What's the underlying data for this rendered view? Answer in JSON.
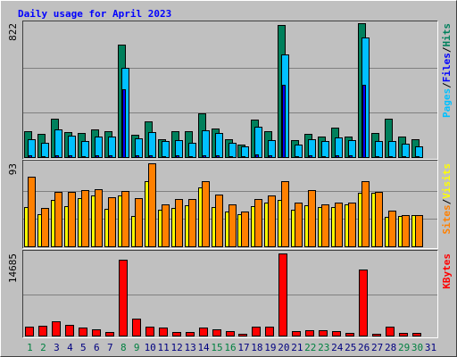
{
  "title": "Daily usage for April 2023",
  "legend_separator": "/",
  "chart_data": [
    {
      "type": "bar",
      "ylim": [
        0,
        822
      ],
      "yticks": [
        822
      ],
      "grid_lines": 3,
      "series": [
        {
          "name": "Pages",
          "color": "#00c0ff",
          "values": [
            110,
            88,
            170,
            132,
            99,
            126,
            126,
            548,
            115,
            153,
            99,
            104,
            88,
            164,
            148,
            88,
            66,
            186,
            104,
            630,
            77,
            110,
            99,
            121,
            104,
            734,
            99,
            99,
            82,
            66,
            0
          ]
        },
        {
          "name": "Files",
          "color": "#0000ff",
          "values": [
            10,
            8,
            12,
            10,
            8,
            10,
            10,
            416,
            9,
            12,
            8,
            9,
            8,
            12,
            11,
            8,
            6,
            14,
            9,
            444,
            6,
            9,
            8,
            10,
            9,
            444,
            8,
            8,
            7,
            6,
            0
          ]
        },
        {
          "name": "Hits",
          "color": "#00805c",
          "values": [
            159,
            142,
            236,
            153,
            148,
            170,
            159,
            690,
            137,
            219,
            110,
            159,
            159,
            268,
            175,
            110,
            77,
            230,
            159,
            810,
            104,
            142,
            126,
            181,
            126,
            822,
            148,
            236,
            126,
            110,
            0
          ]
        }
      ]
    },
    {
      "type": "bar",
      "ylim": [
        0,
        93
      ],
      "yticks": [
        93
      ],
      "grid_lines": 3,
      "series": [
        {
          "name": "Sites",
          "color": "#ff8000",
          "values": [
            78,
            43,
            61,
            61,
            63,
            64,
            55,
            62,
            54,
            93,
            47,
            53,
            53,
            73,
            58,
            47,
            39,
            53,
            57,
            73,
            49,
            63,
            47,
            49,
            49,
            73,
            61,
            40,
            35,
            35,
            0
          ]
        },
        {
          "name": "Visits",
          "color": "#ffff00",
          "values": [
            44,
            36,
            52,
            45,
            54,
            57,
            42,
            57,
            34,
            73,
            41,
            43,
            46,
            66,
            44,
            39,
            36,
            45,
            49,
            52,
            41,
            46,
            44,
            44,
            47,
            60,
            60,
            33,
            34,
            35,
            0
          ]
        }
      ]
    },
    {
      "type": "bar",
      "ylim": [
        0,
        14685
      ],
      "yticks": [
        14685
      ],
      "grid_lines": 2,
      "categories": [
        "1",
        "2",
        "3",
        "4",
        "5",
        "6",
        "7",
        "8",
        "9",
        "10",
        "11",
        "12",
        "13",
        "14",
        "15",
        "16",
        "17",
        "18",
        "19",
        "20",
        "21",
        "22",
        "23",
        "24",
        "25",
        "26",
        "27",
        "28",
        "29",
        "30",
        "31"
      ],
      "category_colors": [
        "#008040",
        "#008040",
        "#000080",
        "#000080",
        "#000080",
        "#000080",
        "#000080",
        "#008040",
        "#008040",
        "#000080",
        "#000080",
        "#000080",
        "#000080",
        "#000080",
        "#008040",
        "#008040",
        "#000080",
        "#000080",
        "#000080",
        "#000080",
        "#000080",
        "#008040",
        "#008040",
        "#000080",
        "#000080",
        "#000080",
        "#000080",
        "#000080",
        "#008040",
        "#008040",
        "#000080"
      ],
      "series": [
        {
          "name": "KBytes",
          "color": "#ff0000",
          "values": [
            1596,
            1756,
            2554,
            1915,
            1436,
            1117,
            638,
            13568,
            3032,
            1596,
            1436,
            638,
            638,
            1436,
            1117,
            798,
            319,
            1596,
            1596,
            14685,
            798,
            958,
            958,
            798,
            479,
            11810,
            319,
            1596,
            479,
            479,
            0
          ]
        }
      ]
    }
  ]
}
